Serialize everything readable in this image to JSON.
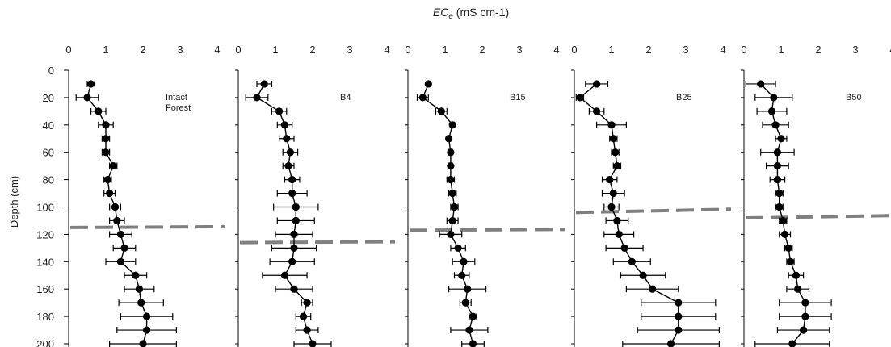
{
  "chart_data": {
    "type": "scatter",
    "title": "ECe (mS cm-1)",
    "title_main": "EC",
    "title_sub": "e",
    "title_units": " (mS cm-1)",
    "ylabel": "Depth (cm)",
    "xlim": [
      0,
      4
    ],
    "ylim": [
      0,
      200
    ],
    "y_inverted": true,
    "x_ticks": [
      "0",
      "1",
      "2",
      "3",
      "4"
    ],
    "y_ticks": [
      "0",
      "20",
      "40",
      "60",
      "80",
      "100",
      "120",
      "140",
      "160",
      "180",
      "200"
    ],
    "grid": false,
    "colors": {
      "series": "#000000",
      "reference_line": "#808080"
    },
    "panels": [
      {
        "name": "Intact Forest",
        "label_lines": [
          "Intact",
          "Forest"
        ],
        "depth": [
          10,
          20,
          30,
          40,
          50,
          60,
          70,
          80,
          90,
          100,
          110,
          120,
          130,
          140,
          150,
          160,
          170,
          180,
          190,
          200
        ],
        "ece": [
          0.6,
          0.5,
          0.8,
          1.0,
          1.0,
          1.0,
          1.2,
          1.05,
          1.1,
          1.25,
          1.3,
          1.4,
          1.5,
          1.4,
          1.8,
          1.9,
          1.95,
          2.1,
          2.1,
          2.0
        ],
        "error": [
          0.1,
          0.3,
          0.2,
          0.2,
          0.1,
          0.1,
          0.1,
          0.1,
          0.15,
          0.15,
          0.2,
          0.3,
          0.3,
          0.4,
          0.3,
          0.4,
          0.6,
          0.7,
          0.8,
          0.9
        ],
        "threshold_depth": 115
      },
      {
        "name": "B4",
        "label_lines": [
          "B4"
        ],
        "depth": [
          10,
          20,
          30,
          40,
          50,
          60,
          70,
          80,
          90,
          100,
          110,
          120,
          130,
          140,
          150,
          160,
          170,
          180,
          190,
          200
        ],
        "ece": [
          0.7,
          0.5,
          1.1,
          1.25,
          1.3,
          1.4,
          1.35,
          1.45,
          1.45,
          1.55,
          1.55,
          1.5,
          1.5,
          1.45,
          1.25,
          1.5,
          1.85,
          1.75,
          1.85,
          2.0
        ],
        "error": [
          0.2,
          0.3,
          0.2,
          0.2,
          0.2,
          0.2,
          0.15,
          0.2,
          0.4,
          0.6,
          0.5,
          0.5,
          0.6,
          0.6,
          0.6,
          0.5,
          0.15,
          0.2,
          0.3,
          0.5
        ],
        "threshold_depth": 126
      },
      {
        "name": "B15",
        "label_lines": [
          "B15"
        ],
        "depth": [
          10,
          20,
          30,
          40,
          50,
          60,
          70,
          80,
          90,
          100,
          110,
          120,
          130,
          140,
          150,
          160,
          170,
          180,
          190,
          200
        ],
        "ece": [
          0.55,
          0.4,
          0.9,
          1.2,
          1.1,
          1.15,
          1.15,
          1.15,
          1.2,
          1.25,
          1.2,
          1.15,
          1.35,
          1.5,
          1.45,
          1.6,
          1.55,
          1.75,
          1.65,
          1.75
        ],
        "error": [
          0.05,
          0.15,
          0.15,
          0.05,
          0.05,
          0.05,
          0.05,
          0.1,
          0.1,
          0.1,
          0.15,
          0.3,
          0.2,
          0.3,
          0.2,
          0.5,
          0.15,
          0.1,
          0.5,
          0.3
        ],
        "threshold_depth": 117
      },
      {
        "name": "B25",
        "label_lines": [
          "B25"
        ],
        "depth": [
          10,
          20,
          30,
          40,
          50,
          60,
          70,
          80,
          90,
          100,
          110,
          120,
          130,
          140,
          150,
          160,
          170,
          180,
          190,
          200
        ],
        "ece": [
          0.6,
          0.15,
          0.6,
          1.0,
          1.05,
          1.1,
          1.15,
          0.95,
          1.05,
          1.0,
          1.15,
          1.2,
          1.35,
          1.55,
          1.85,
          2.1,
          2.8,
          2.8,
          2.8,
          2.6
        ],
        "error": [
          0.3,
          0.1,
          0.2,
          0.4,
          0.1,
          0.1,
          0.1,
          0.2,
          0.3,
          0.2,
          0.3,
          0.4,
          0.5,
          0.5,
          0.6,
          0.7,
          1.0,
          1.0,
          1.1,
          1.3
        ],
        "threshold_depth": 104
      },
      {
        "name": "B50",
        "label_lines": [
          "B50"
        ],
        "depth": [
          10,
          20,
          30,
          40,
          50,
          60,
          70,
          80,
          90,
          100,
          110,
          120,
          130,
          140,
          150,
          160,
          170,
          180,
          190,
          200
        ],
        "ece": [
          0.45,
          0.8,
          0.75,
          0.85,
          1.0,
          0.9,
          0.9,
          0.9,
          0.95,
          0.95,
          1.05,
          1.1,
          1.2,
          1.25,
          1.4,
          1.45,
          1.65,
          1.65,
          1.6,
          1.3
        ],
        "error": [
          0.4,
          0.5,
          0.4,
          0.35,
          0.15,
          0.45,
          0.3,
          0.2,
          0.1,
          0.1,
          0.1,
          0.15,
          0.1,
          0.1,
          0.2,
          0.3,
          0.7,
          0.7,
          0.7,
          1.0
        ],
        "threshold_depth": 108
      }
    ]
  }
}
